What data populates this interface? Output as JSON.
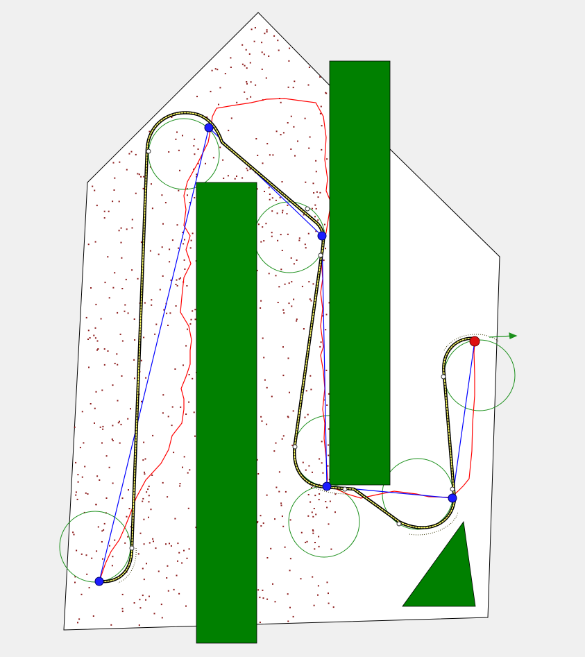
{
  "diagram": {
    "colors": {
      "background": "#f0f0f0",
      "workspace_fill": "#ffffff",
      "workspace_stroke": "#000000",
      "obstacle": "#008000",
      "sample_dot": "#8b1a1a",
      "rrt_path": "#ff0000",
      "waypoint_path": "#0000ff",
      "waypoint_node": "#1c1cff",
      "goal_node": "#dd1111",
      "turning_circle": "#1a8f1a",
      "smooth_path_outer": "#000000",
      "smooth_path_inner": "#ffff66",
      "heading_arrow": "#1a8f1a"
    },
    "legend": [],
    "labels": []
  }
}
